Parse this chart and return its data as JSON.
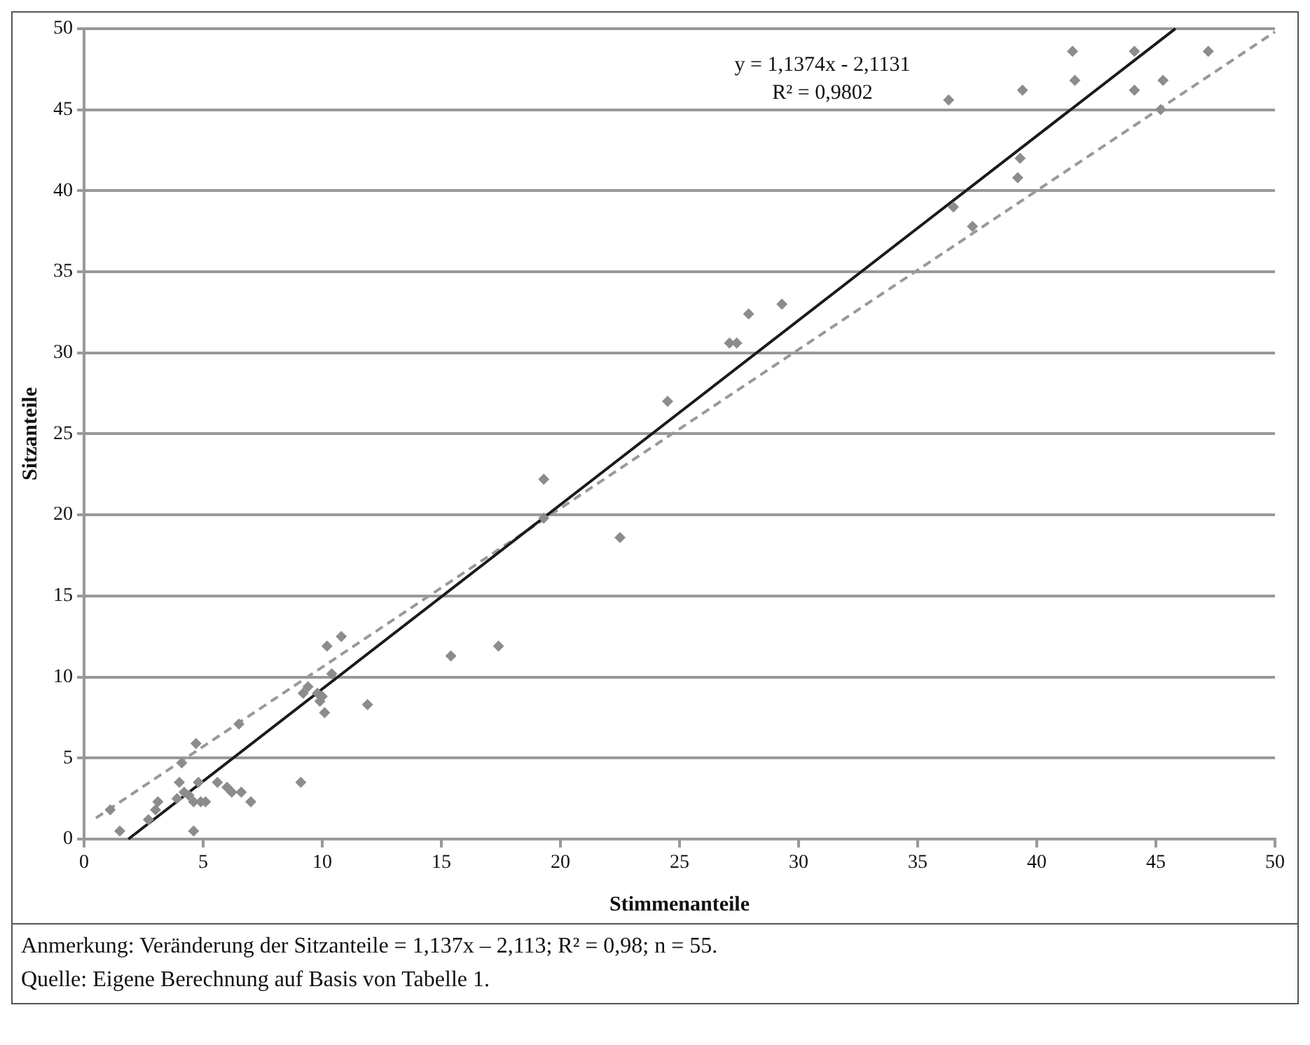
{
  "chart_data": {
    "type": "scatter",
    "xlabel": "Stimmenanteile",
    "ylabel": "Sitzanteile",
    "xlim": [
      0,
      50
    ],
    "xticks": [
      0,
      5,
      10,
      15,
      20,
      25,
      30,
      35,
      40,
      45,
      50
    ],
    "ylim": [
      0,
      50
    ],
    "yticks": [
      0,
      5,
      10,
      15,
      20,
      25,
      30,
      35,
      40,
      45,
      50
    ],
    "grid": "y",
    "legend": false,
    "marker": "diamond",
    "series": [
      {
        "type": "scatter",
        "color": "#8c8c8c",
        "x": [
          1.1,
          1.5,
          2.7,
          3.0,
          3.1,
          3.9,
          4.0,
          4.1,
          4.2,
          4.4,
          4.6,
          4.6,
          4.7,
          4.8,
          4.9,
          5.1,
          5.6,
          6.0,
          6.2,
          6.5,
          6.6,
          7.0,
          9.1,
          9.2,
          9.4,
          9.8,
          9.9,
          10.0,
          10.1,
          10.2,
          10.4,
          10.8,
          11.9,
          15.4,
          17.4,
          19.3,
          19.3,
          22.5,
          24.5,
          27.1,
          27.4,
          27.9,
          29.3,
          36.3,
          36.5,
          37.3,
          39.2,
          39.3,
          39.4,
          41.5,
          41.6,
          44.1,
          44.1,
          45.2,
          45.3,
          47.2
        ],
        "values": [
          1.8,
          0.5,
          1.2,
          1.8,
          2.3,
          2.5,
          3.5,
          4.7,
          2.9,
          2.7,
          2.3,
          0.5,
          5.9,
          3.5,
          2.3,
          2.3,
          3.5,
          3.2,
          2.9,
          7.1,
          2.9,
          2.3,
          3.5,
          9.0,
          9.4,
          9.0,
          8.5,
          8.8,
          7.8,
          11.9,
          10.2,
          12.5,
          8.3,
          11.3,
          11.9,
          22.2,
          19.8,
          18.6,
          27.0,
          30.6,
          30.6,
          32.4,
          33.0,
          45.6,
          39.0,
          37.8,
          40.8,
          42.0,
          46.2,
          48.6,
          46.8,
          48.6,
          46.2,
          45.0,
          46.8,
          48.6
        ]
      },
      {
        "type": "line",
        "color": "#1a1a1a",
        "line_style": "solid",
        "marker": "none",
        "x": [
          1.86,
          45.82
        ],
        "values": [
          0,
          50
        ]
      },
      {
        "type": "line",
        "color": "#999999",
        "line_style": "dashed",
        "marker": "none",
        "x": [
          0.5,
          50
        ],
        "values": [
          1.3,
          49.8
        ]
      }
    ],
    "annotations": [
      "y = 1,1374x - 2,1131",
      "R² = 0,9802",
      "Anmerkung: Veränderung der Sitzanteile = 1,137x – 2,113; R² = 0,98; n = 55.",
      "Quelle: Eigene Berechnung auf Basis von Tabelle 1."
    ]
  }
}
